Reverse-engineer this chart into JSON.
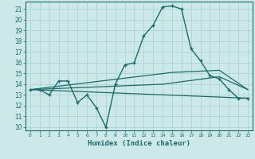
{
  "title": "",
  "xlabel": "Humidex (Indice chaleur)",
  "ylabel": "",
  "background_color": "#cce8e8",
  "grid_color": "#a8d0d0",
  "line_color": "#1a6b6b",
  "x_ticks": [
    0,
    1,
    2,
    3,
    4,
    5,
    6,
    7,
    8,
    9,
    10,
    11,
    12,
    13,
    14,
    15,
    16,
    17,
    18,
    19,
    20,
    21,
    22,
    23
  ],
  "y_ticks": [
    10,
    11,
    12,
    13,
    14,
    15,
    16,
    17,
    18,
    19,
    20,
    21
  ],
  "ylim": [
    9.7,
    21.7
  ],
  "xlim": [
    -0.5,
    23.5
  ],
  "series": [
    {
      "x": [
        0,
        1,
        2,
        3,
        4,
        5,
        6,
        7,
        8,
        9,
        10,
        11,
        12,
        13,
        14,
        15,
        16,
        17,
        18,
        19,
        20,
        21,
        22,
        23
      ],
      "y": [
        13.5,
        13.5,
        13.0,
        14.3,
        14.3,
        12.3,
        13.0,
        11.8,
        10.0,
        14.0,
        15.8,
        16.0,
        18.5,
        19.5,
        21.2,
        21.3,
        21.0,
        17.3,
        16.2,
        14.8,
        14.5,
        13.5,
        12.7,
        12.7
      ],
      "marker": "+",
      "markersize": 3.5,
      "linewidth": 1.0
    },
    {
      "x": [
        0,
        23
      ],
      "y": [
        13.5,
        12.7
      ],
      "marker": null,
      "linewidth": 0.9
    },
    {
      "x": [
        0,
        14,
        20,
        23
      ],
      "y": [
        13.5,
        14.0,
        14.7,
        13.5
      ],
      "marker": null,
      "linewidth": 0.9
    },
    {
      "x": [
        0,
        15,
        20,
        23
      ],
      "y": [
        13.5,
        15.1,
        15.3,
        13.5
      ],
      "marker": null,
      "linewidth": 0.9
    }
  ]
}
